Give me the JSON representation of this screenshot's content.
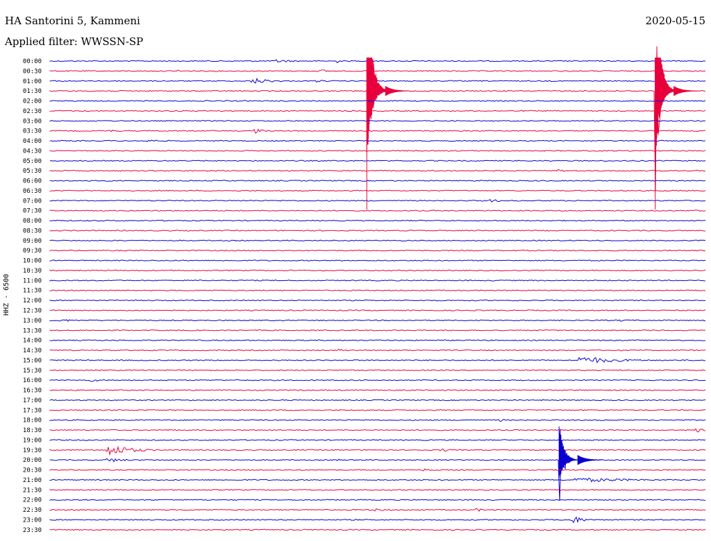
{
  "header": {
    "station": "HA Santorini 5, Kammeni",
    "date": "2020-05-15",
    "filter_label": "Applied filter: WWSSN-SP"
  },
  "channel_label": "HHZ - 6500",
  "colors": {
    "blue": "#0a00d0",
    "red": "#e8003c"
  },
  "chart_data": {
    "type": "line",
    "title": "",
    "ylabel": "HHZ - 6500",
    "row_labels": [
      "00:00",
      "00:30",
      "01:00",
      "01:30",
      "02:00",
      "02:30",
      "03:00",
      "03:30",
      "04:00",
      "04:30",
      "05:00",
      "05:30",
      "06:00",
      "06:30",
      "07:00",
      "07:30",
      "08:00",
      "08:30",
      "09:00",
      "09:30",
      "10:00",
      "10:30",
      "11:00",
      "11:30",
      "12:00",
      "12:30",
      "13:00",
      "13:30",
      "14:00",
      "14:30",
      "15:00",
      "15:30",
      "16:00",
      "16:30",
      "17:00",
      "17:30",
      "18:00",
      "18:30",
      "19:00",
      "19:30",
      "20:00",
      "20:30",
      "21:00",
      "21:30",
      "22:00",
      "22:30",
      "23:00",
      "23:30"
    ],
    "row_colors": [
      "blue",
      "red"
    ],
    "x_minutes_per_row": 30,
    "events": [
      {
        "row": 0,
        "minute": 10.3,
        "duration": 1.2,
        "amp": 2.5
      },
      {
        "row": 0,
        "minute": 13.1,
        "duration": 0.3,
        "amp": 3
      },
      {
        "row": 1,
        "minute": 5.8,
        "duration": 0.2,
        "amp": 3
      },
      {
        "row": 1,
        "minute": 12.3,
        "duration": 1.0,
        "amp": 2
      },
      {
        "row": 2,
        "minute": 0.5,
        "duration": 0.3,
        "amp": 3
      },
      {
        "row": 2,
        "minute": 9.2,
        "duration": 1.4,
        "amp": 4
      },
      {
        "row": 2,
        "minute": 12.1,
        "duration": 0.9,
        "amp": 2
      },
      {
        "row": 3,
        "minute": 14.5,
        "duration": 0.2,
        "amp": 200
      },
      {
        "row": 3,
        "minute": 27.7,
        "duration": 0.2,
        "amp": 200
      },
      {
        "row": 7,
        "minute": 9.3,
        "duration": 0.6,
        "amp": 4
      },
      {
        "row": 7,
        "minute": 2.5,
        "duration": 1.0,
        "amp": 2
      },
      {
        "row": 8,
        "minute": 4.4,
        "duration": 0.9,
        "amp": 2
      },
      {
        "row": 11,
        "minute": 23.2,
        "duration": 0.6,
        "amp": 2
      },
      {
        "row": 12,
        "minute": 7.0,
        "duration": 0.1,
        "amp": 2
      },
      {
        "row": 14,
        "minute": 20.0,
        "duration": 1.2,
        "amp": 2
      },
      {
        "row": 15,
        "minute": 29.5,
        "duration": 0.5,
        "amp": 2
      },
      {
        "row": 16,
        "minute": 0.2,
        "duration": 0.6,
        "amp": 2
      },
      {
        "row": 22,
        "minute": 18.2,
        "duration": 0.1,
        "amp": 2
      },
      {
        "row": 26,
        "minute": 0.4,
        "duration": 1.2,
        "amp": 2
      },
      {
        "row": 26,
        "minute": 26.0,
        "duration": 0.6,
        "amp": 2
      },
      {
        "row": 29,
        "minute": 13.2,
        "duration": 0.6,
        "amp": 2
      },
      {
        "row": 30,
        "minute": 24.2,
        "duration": 2.5,
        "amp": 5
      },
      {
        "row": 32,
        "minute": 1.8,
        "duration": 1.0,
        "amp": 2
      },
      {
        "row": 37,
        "minute": 29.5,
        "duration": 0.5,
        "amp": 4
      },
      {
        "row": 36,
        "minute": 20.5,
        "duration": 0.6,
        "amp": 2
      },
      {
        "row": 39,
        "minute": 2.6,
        "duration": 1.5,
        "amp": 8
      },
      {
        "row": 39,
        "minute": 17.8,
        "duration": 1.0,
        "amp": 2
      },
      {
        "row": 40,
        "minute": 2.6,
        "duration": 1.2,
        "amp": 3
      },
      {
        "row": 40,
        "minute": 13.0,
        "duration": 0.2,
        "amp": 6
      },
      {
        "row": 40,
        "minute": 23.3,
        "duration": 0.3,
        "amp": 60
      },
      {
        "row": 41,
        "minute": 17.0,
        "duration": 0.8,
        "amp": 2
      },
      {
        "row": 42,
        "minute": 24.0,
        "duration": 4.0,
        "amp": 3
      },
      {
        "row": 44,
        "minute": 1.4,
        "duration": 0.1,
        "amp": 2
      },
      {
        "row": 44,
        "minute": 14.5,
        "duration": 0.1,
        "amp": 2
      },
      {
        "row": 45,
        "minute": 14.6,
        "duration": 1.5,
        "amp": 2
      },
      {
        "row": 45,
        "minute": 19.5,
        "duration": 0.8,
        "amp": 2
      },
      {
        "row": 46,
        "minute": 23.8,
        "duration": 0.8,
        "amp": 6
      }
    ]
  }
}
